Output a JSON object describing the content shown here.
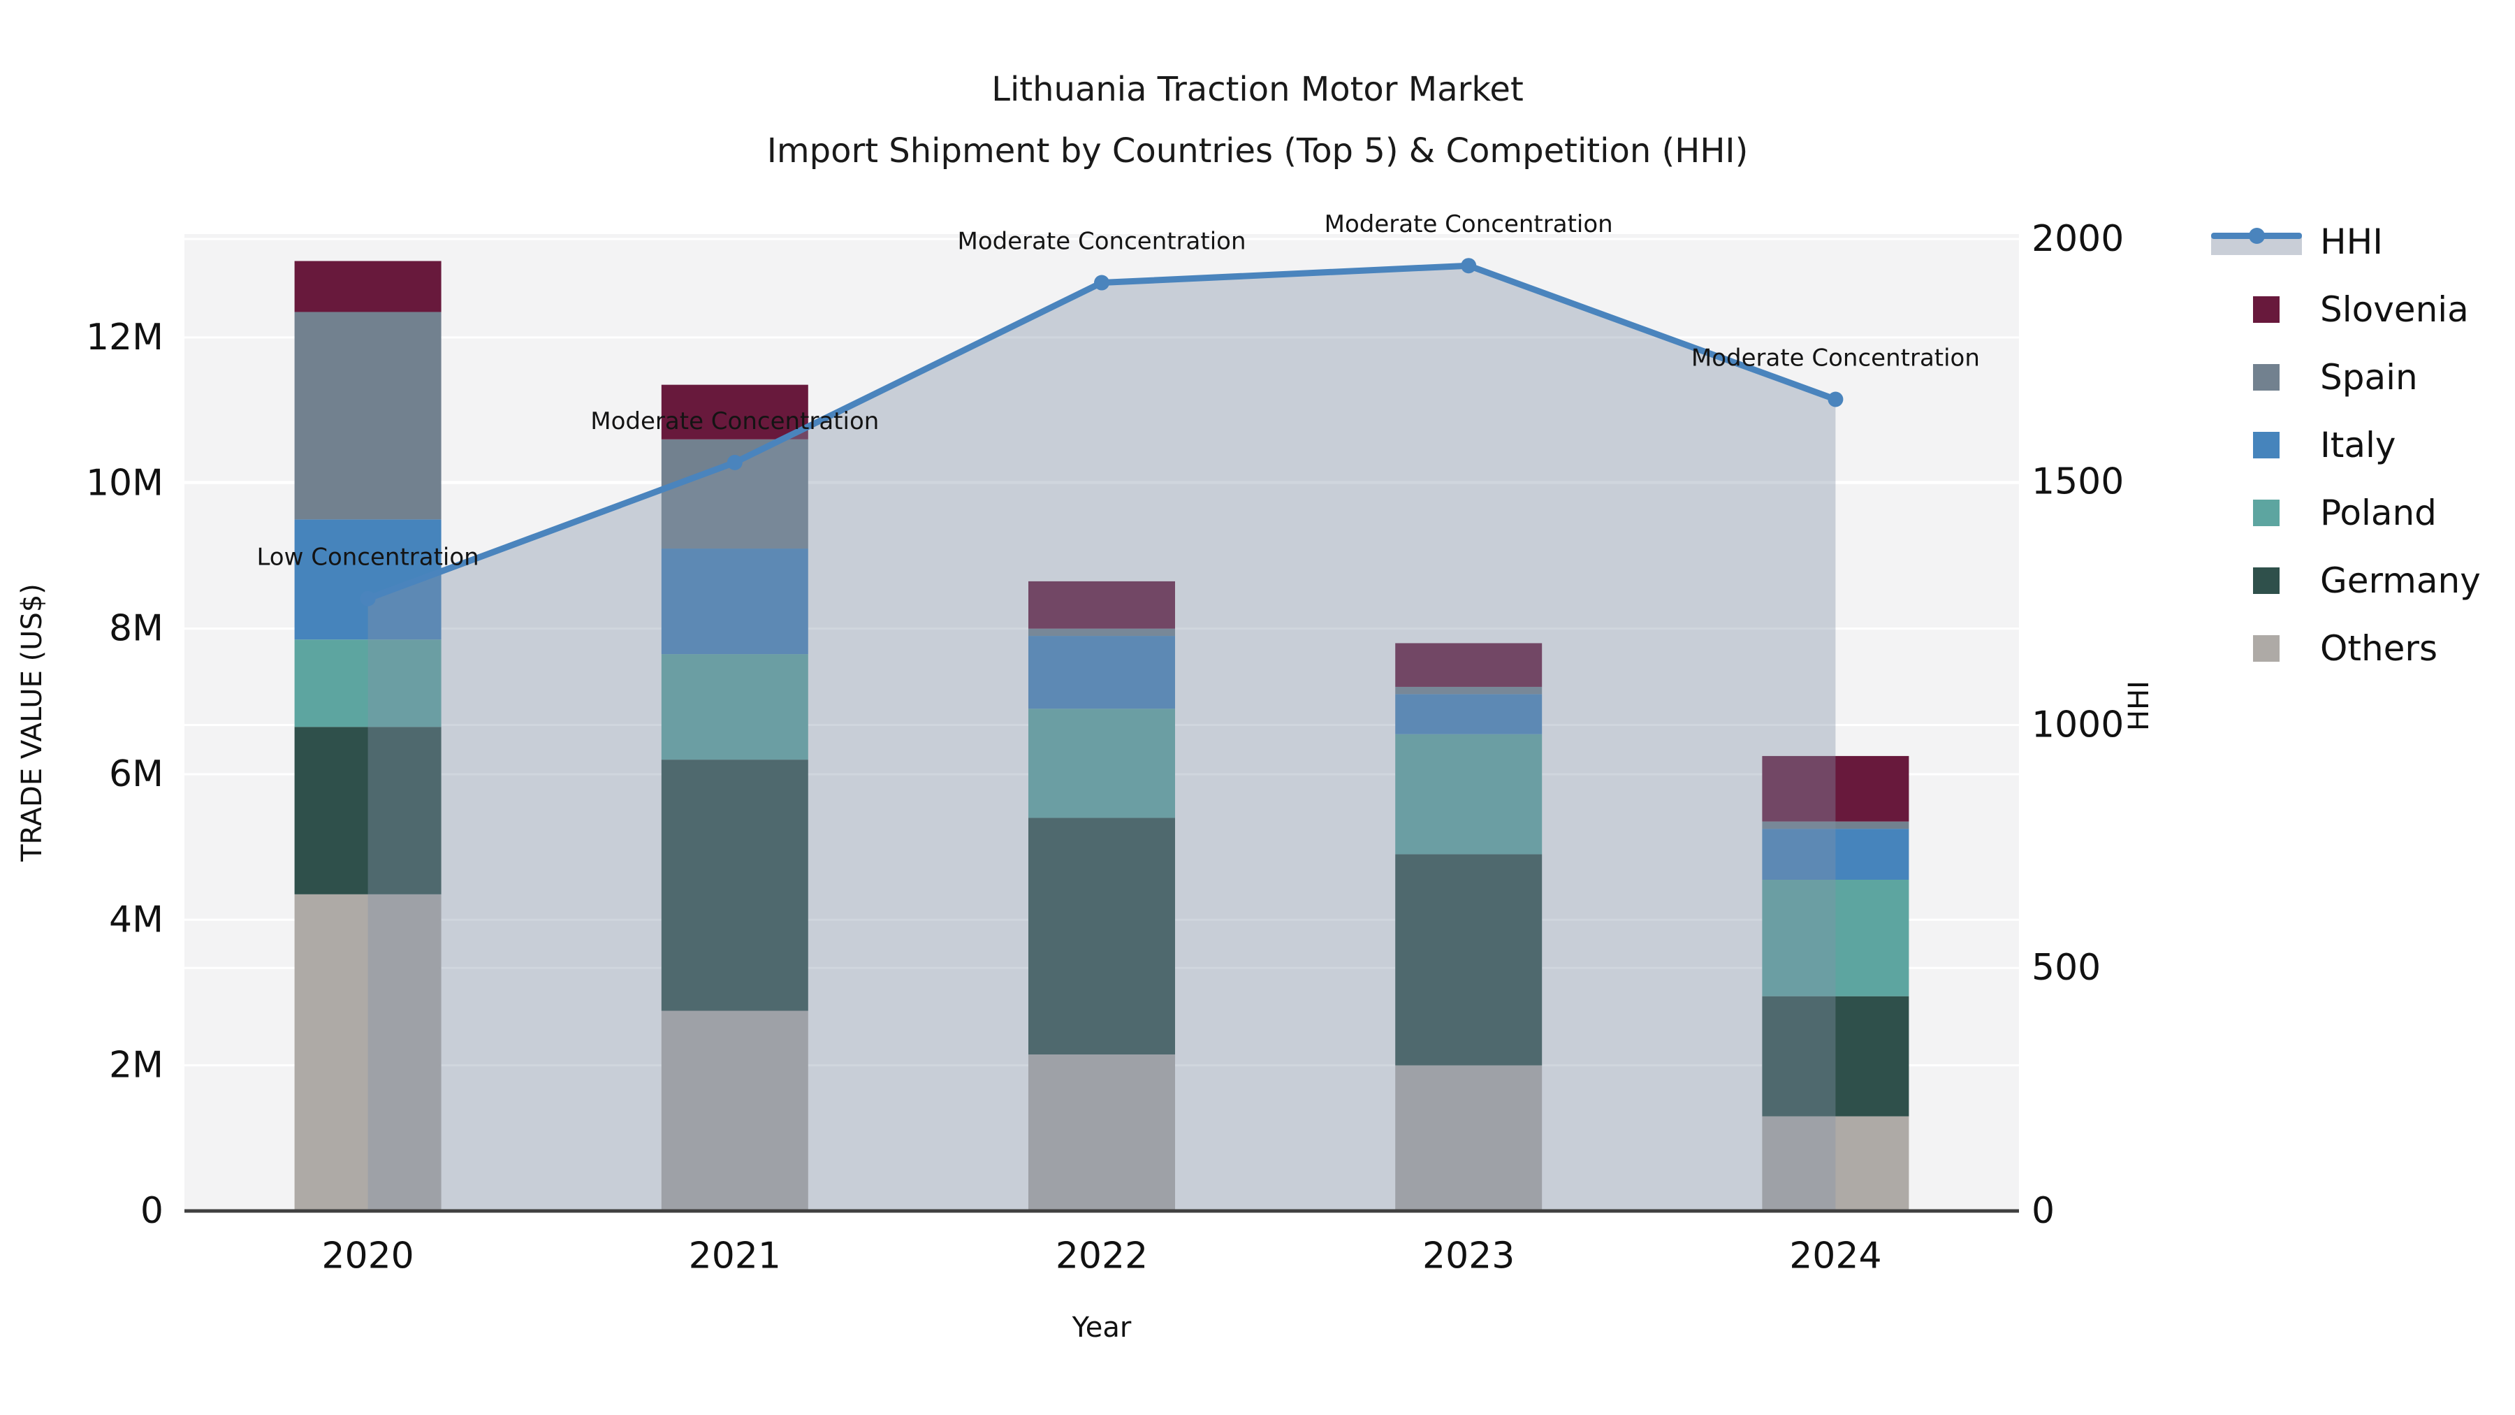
{
  "title": {
    "line1": "Lithuania Traction Motor Market",
    "line2": "Import Shipment by Countries (Top 5) & Competition (HHI)"
  },
  "axes": {
    "left": {
      "title": "TRADE VALUE (US$)",
      "tick_labels": [
        "0",
        "2M",
        "4M",
        "6M",
        "8M",
        "10M",
        "12M"
      ],
      "tick_values_musd": [
        0,
        2,
        4,
        6,
        8,
        10,
        12
      ],
      "range_musd": [
        0,
        13.42
      ]
    },
    "right": {
      "title": "HHI",
      "tick_labels": [
        "0",
        "500",
        "1000",
        "1500",
        "2000"
      ],
      "tick_values": [
        0,
        500,
        1000,
        1500,
        2000
      ],
      "range": [
        0,
        2010
      ]
    },
    "x": {
      "title": "Year",
      "categories": [
        "2020",
        "2021",
        "2022",
        "2023",
        "2024"
      ]
    }
  },
  "chart_data": {
    "type": "bar+line",
    "categories": [
      "2020",
      "2021",
      "2022",
      "2023",
      "2024"
    ],
    "bar_unit": "M US$ (trade value, left axis)",
    "stack_order_bottom_to_top": [
      "Others",
      "Germany",
      "Poland",
      "Italy",
      "Spain",
      "Slovenia"
    ],
    "series": [
      {
        "name": "Others",
        "color": "#aeaaa6",
        "values": [
          4.35,
          2.75,
          2.15,
          2.0,
          1.3
        ]
      },
      {
        "name": "Germany",
        "color": "#2f504b",
        "values": [
          2.3,
          3.45,
          3.25,
          2.9,
          1.65
        ]
      },
      {
        "name": "Poland",
        "color": "#5da5a0",
        "values": [
          1.2,
          1.45,
          1.5,
          1.65,
          1.6
        ]
      },
      {
        "name": "Italy",
        "color": "#4684bc",
        "values": [
          1.65,
          1.45,
          1.0,
          0.55,
          0.7
        ]
      },
      {
        "name": "Spain",
        "color": "#72818f",
        "values": [
          2.85,
          1.5,
          0.1,
          0.1,
          0.1
        ]
      },
      {
        "name": "Slovenia",
        "color": "#68193c",
        "values": [
          0.7,
          0.75,
          0.65,
          0.6,
          0.9
        ]
      }
    ],
    "bar_totals_musd": [
      13.05,
      11.35,
      8.65,
      7.8,
      6.25
    ],
    "line": {
      "name": "HHI",
      "color": "#4a84bd",
      "area_color": "rgba(131,146,169,0.38)",
      "values": [
        1260,
        1540,
        1910,
        1945,
        1670
      ],
      "annotations": [
        "Low Concentration",
        "Moderate Concentration",
        "Moderate Concentration",
        "Moderate Concentration",
        "Moderate Concentration"
      ]
    },
    "grid": true,
    "legend_position": "outside-top-right",
    "plot_background": "#f3f3f4",
    "gridline_color": "#ffffff"
  },
  "legend": {
    "items": [
      {
        "label": "HHI",
        "type": "line-area",
        "color": "#4a84bd",
        "area_color": "#c9ced7"
      },
      {
        "label": "Slovenia",
        "type": "swatch",
        "color": "#68193c"
      },
      {
        "label": "Spain",
        "type": "swatch",
        "color": "#72818f"
      },
      {
        "label": "Italy",
        "type": "swatch",
        "color": "#4684bc"
      },
      {
        "label": "Poland",
        "type": "swatch",
        "color": "#5da5a0"
      },
      {
        "label": "Germany",
        "type": "swatch",
        "color": "#2f504b"
      },
      {
        "label": "Others",
        "type": "swatch",
        "color": "#aeaaa6"
      }
    ]
  }
}
